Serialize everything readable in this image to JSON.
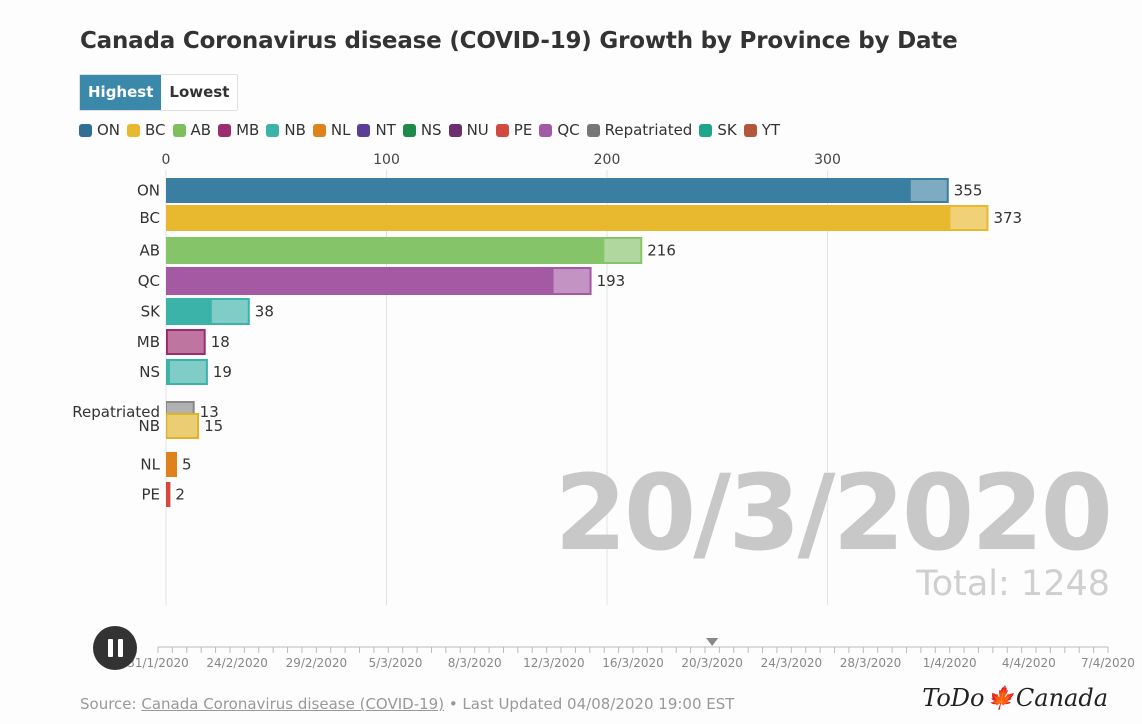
{
  "title": "Canada Coronavirus disease (COVID-19) Growth by Province by Date",
  "toggle": {
    "highest": "Highest",
    "lowest": "Lowest"
  },
  "legend": [
    {
      "label": "ON",
      "color": "#2f6f94"
    },
    {
      "label": "BC",
      "color": "#e8b92f"
    },
    {
      "label": "AB",
      "color": "#7fbe5c"
    },
    {
      "label": "MB",
      "color": "#9b2d6f"
    },
    {
      "label": "NB",
      "color": "#3bb3a8"
    },
    {
      "label": "NL",
      "color": "#e0821c"
    },
    {
      "label": "NT",
      "color": "#5a3e97"
    },
    {
      "label": "NS",
      "color": "#1f8a4c"
    },
    {
      "label": "NU",
      "color": "#6b2e6e"
    },
    {
      "label": "PE",
      "color": "#d2493f"
    },
    {
      "label": "QC",
      "color": "#a15aa5"
    },
    {
      "label": "Repatriated",
      "color": "#777777"
    },
    {
      "label": "SK",
      "color": "#1fa58a"
    },
    {
      "label": "YT",
      "color": "#b2563c"
    }
  ],
  "chart_data": {
    "type": "bar",
    "orientation": "horizontal",
    "title": "Canada Coronavirus disease (COVID-19) Growth by Province by Date",
    "xlim": [
      0,
      400
    ],
    "xticks": [
      0,
      100,
      200,
      300
    ],
    "grid": true,
    "legend_placement": "top-left",
    "bars": [
      {
        "label": "ON",
        "value": 355,
        "color": "#3a7ea1"
      },
      {
        "label": "BC",
        "value": 373,
        "color": "#e8b92f"
      },
      {
        "label": "AB",
        "value": 216,
        "color": "#86c46a"
      },
      {
        "label": "QC",
        "value": 193,
        "color": "#a35aa3"
      },
      {
        "label": "SK",
        "value": 38,
        "color": "#3bb3a8"
      },
      {
        "label": "MB",
        "value": 18,
        "color": "#9b2d6f"
      },
      {
        "label": "NS",
        "value": 19,
        "color": "#3bb3a8"
      },
      {
        "label": "Repatriated",
        "value": 13,
        "color": "#888888"
      },
      {
        "label": "NB",
        "value": 15,
        "color": "#e0b22a"
      },
      {
        "label": "NL",
        "value": 5,
        "color": "#e0821c"
      },
      {
        "label": "PE",
        "value": 2,
        "color": "#d2493f"
      }
    ]
  },
  "date_display": "20/3/2020",
  "total_display": "Total: 1248",
  "timeline": {
    "labels": [
      "31/1/2020",
      "24/2/2020",
      "29/2/2020",
      "5/3/2020",
      "8/3/2020",
      "12/3/2020",
      "16/3/2020",
      "20/3/2020",
      "24/3/2020",
      "28/3/2020",
      "1/4/2020",
      "4/4/2020",
      "7/4/2020"
    ],
    "current": "20/3/2020"
  },
  "footer": {
    "prefix": "Source: ",
    "link": "Canada Coronavirus disease (COVID-19)",
    "suffix": " • Last Updated 04/08/2020 19:00 EST"
  },
  "logo": {
    "left": "ToDo",
    "right": "Canada"
  }
}
